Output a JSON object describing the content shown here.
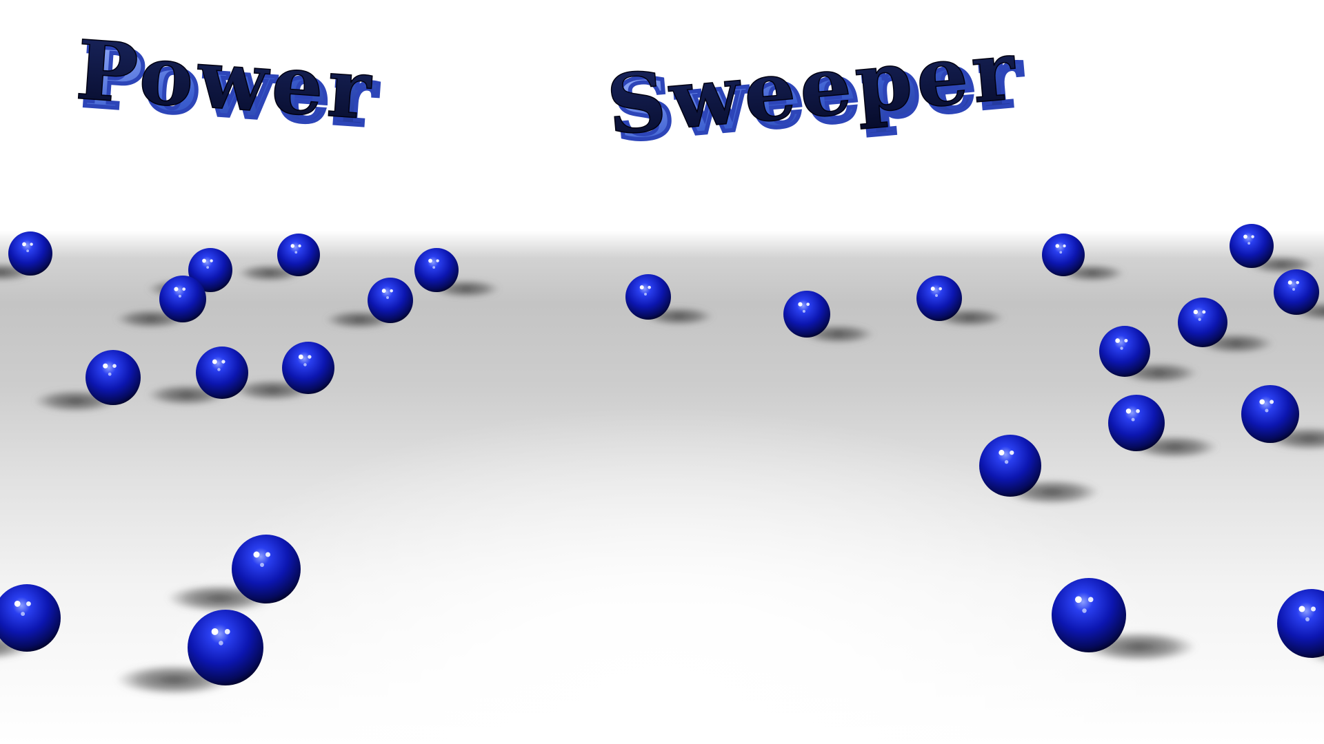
{
  "title": {
    "word1": "Power",
    "word2": "Sweeper"
  },
  "colors": {
    "ball_core": "#0a0f8a",
    "ball_mid": "#1f2fd6",
    "ball_highlight": "#6f86ff",
    "ball_dark": "#01022a",
    "title_face": "#0b1540",
    "title_side": "#4a6fd8",
    "shadow": "#5a5a5a"
  }
}
